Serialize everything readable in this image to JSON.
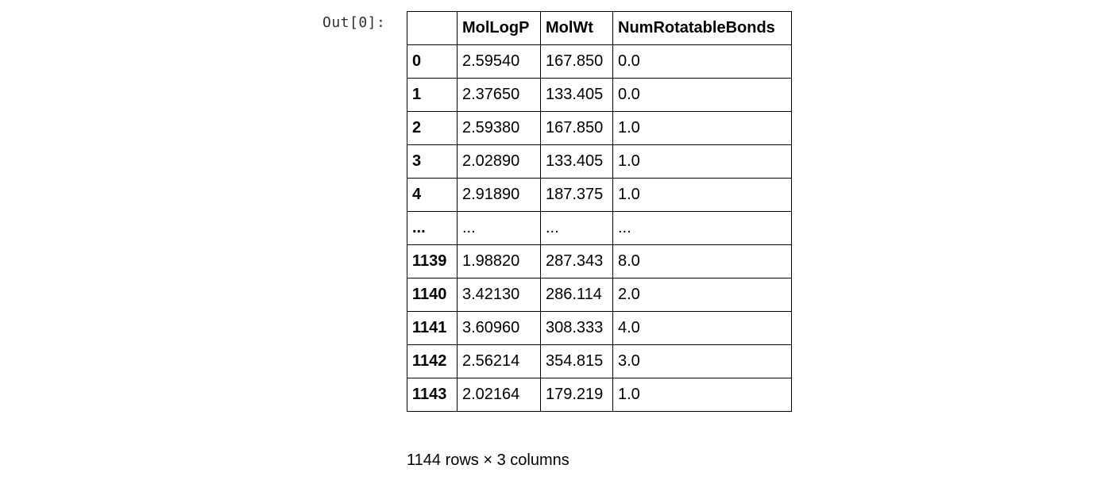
{
  "cell": {
    "prompt": "Out[0]:"
  },
  "dataframe": {
    "columns": [
      "",
      "MolLogP",
      "MolWt",
      "NumRotatableBonds"
    ],
    "rows": [
      {
        "index": "0",
        "MolLogP": "2.59540",
        "MolWt": "167.850",
        "NumRotatableBonds": "0.0"
      },
      {
        "index": "1",
        "MolLogP": "2.37650",
        "MolWt": "133.405",
        "NumRotatableBonds": "0.0"
      },
      {
        "index": "2",
        "MolLogP": "2.59380",
        "MolWt": "167.850",
        "NumRotatableBonds": "1.0"
      },
      {
        "index": "3",
        "MolLogP": "2.02890",
        "MolWt": "133.405",
        "NumRotatableBonds": "1.0"
      },
      {
        "index": "4",
        "MolLogP": "2.91890",
        "MolWt": "187.375",
        "NumRotatableBonds": "1.0"
      },
      {
        "index": "...",
        "MolLogP": "...",
        "MolWt": "...",
        "NumRotatableBonds": "..."
      },
      {
        "index": "1139",
        "MolLogP": "1.98820",
        "MolWt": "287.343",
        "NumRotatableBonds": "8.0"
      },
      {
        "index": "1140",
        "MolLogP": "3.42130",
        "MolWt": "286.114",
        "NumRotatableBonds": "2.0"
      },
      {
        "index": "1141",
        "MolLogP": "3.60960",
        "MolWt": "308.333",
        "NumRotatableBonds": "4.0"
      },
      {
        "index": "1142",
        "MolLogP": "2.56214",
        "MolWt": "354.815",
        "NumRotatableBonds": "3.0"
      },
      {
        "index": "1143",
        "MolLogP": "2.02164",
        "MolWt": "179.219",
        "NumRotatableBonds": "1.0"
      }
    ],
    "shape_text": "1144 rows × 3 columns"
  }
}
